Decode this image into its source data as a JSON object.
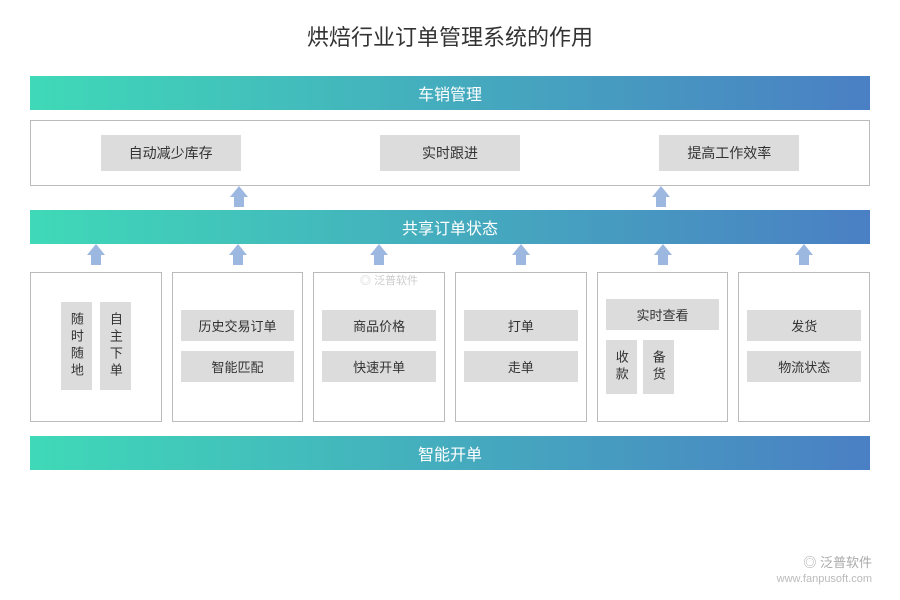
{
  "title": "烘焙行业订单管理系统的作用",
  "bands": {
    "top": "车销管理",
    "middle": "共享订单状态",
    "bottom": "智能开单"
  },
  "band_gradient": {
    "from": "#3fd9b8",
    "to": "#4a7fc4"
  },
  "arrow_color": "#9db8e0",
  "top_features": [
    "自动减少库存",
    "实时跟进",
    "提高工作效率"
  ],
  "cards": [
    {
      "layout": "vpair",
      "items": [
        "随时随地",
        "自主下单"
      ]
    },
    {
      "layout": "stack",
      "items": [
        "历史交易订单",
        "智能匹配"
      ]
    },
    {
      "layout": "stack",
      "items": [
        "商品价格",
        "快速开单"
      ]
    },
    {
      "layout": "stack",
      "items": [
        "打单",
        "走单"
      ]
    },
    {
      "layout": "mixed",
      "top": "实时查看",
      "pair": [
        "收款",
        "备货"
      ]
    },
    {
      "layout": "stack",
      "items": [
        "发货",
        "物流状态"
      ]
    }
  ],
  "watermark": {
    "brand": "泛普软件",
    "url": "www.fanpusoft.com"
  },
  "box_border": "#bbbbbb",
  "pill_bg": "#dcdcdc",
  "title_color": "#333333"
}
